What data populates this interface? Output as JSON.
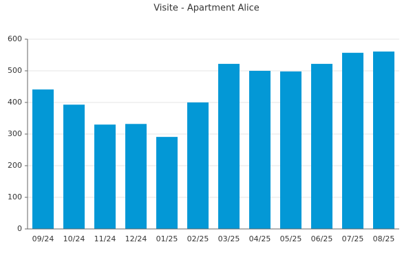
{
  "chart_data": {
    "type": "bar",
    "title": "Visite - Apartment Alice",
    "categories": [
      "09/24",
      "10/24",
      "11/24",
      "12/24",
      "01/25",
      "02/25",
      "03/25",
      "04/25",
      "05/25",
      "06/25",
      "07/25",
      "08/25"
    ],
    "values": [
      441,
      393,
      330,
      332,
      291,
      400,
      522,
      500,
      498,
      522,
      557,
      561
    ],
    "color": "#0398d6",
    "ylim": [
      0,
      600
    ],
    "yticks": [
      0,
      100,
      200,
      300,
      400,
      500,
      600
    ],
    "grid": true
  }
}
